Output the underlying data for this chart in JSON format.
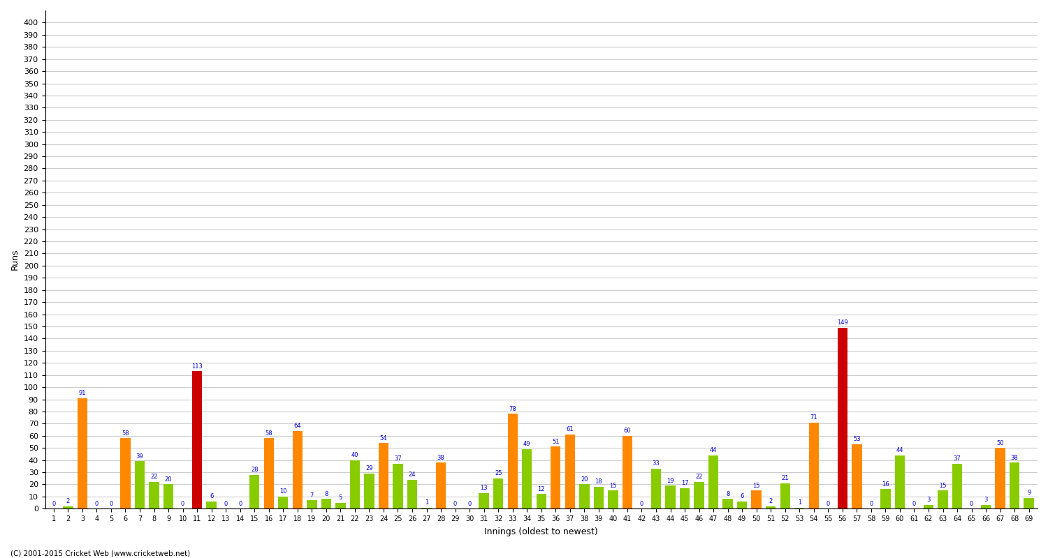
{
  "xlabel": "Innings (oldest to newest)",
  "ylabel": "Runs",
  "background_color": "#ffffff",
  "grid_color": "#cccccc",
  "ylim": [
    0,
    410
  ],
  "orange_color": "#ff8800",
  "green_color": "#88cc00",
  "red_color": "#cc0000",
  "label_color": "#0000cc",
  "footer": "(C) 2001-2015 Cricket Web (www.cricketweb.net)",
  "innings_data": [
    {
      "inn": 1,
      "runs": 0,
      "color": "green"
    },
    {
      "inn": 2,
      "runs": 2,
      "color": "green"
    },
    {
      "inn": 3,
      "runs": 91,
      "color": "orange"
    },
    {
      "inn": 4,
      "runs": 0,
      "color": "orange"
    },
    {
      "inn": 5,
      "runs": 0,
      "color": "green"
    },
    {
      "inn": 6,
      "runs": 58,
      "color": "orange"
    },
    {
      "inn": 7,
      "runs": 39,
      "color": "green"
    },
    {
      "inn": 8,
      "runs": 22,
      "color": "green"
    },
    {
      "inn": 9,
      "runs": 20,
      "color": "green"
    },
    {
      "inn": 10,
      "runs": 0,
      "color": "green"
    },
    {
      "inn": 11,
      "runs": 113,
      "color": "red"
    },
    {
      "inn": 12,
      "runs": 6,
      "color": "green"
    },
    {
      "inn": 13,
      "runs": 0,
      "color": "green"
    },
    {
      "inn": 14,
      "runs": 0,
      "color": "orange"
    },
    {
      "inn": 15,
      "runs": 28,
      "color": "green"
    },
    {
      "inn": 16,
      "runs": 58,
      "color": "orange"
    },
    {
      "inn": 17,
      "runs": 10,
      "color": "green"
    },
    {
      "inn": 18,
      "runs": 64,
      "color": "orange"
    },
    {
      "inn": 19,
      "runs": 7,
      "color": "green"
    },
    {
      "inn": 20,
      "runs": 8,
      "color": "green"
    },
    {
      "inn": 21,
      "runs": 5,
      "color": "green"
    },
    {
      "inn": 22,
      "runs": 40,
      "color": "green"
    },
    {
      "inn": 23,
      "runs": 29,
      "color": "green"
    },
    {
      "inn": 24,
      "runs": 54,
      "color": "orange"
    },
    {
      "inn": 25,
      "runs": 37,
      "color": "green"
    },
    {
      "inn": 26,
      "runs": 24,
      "color": "green"
    },
    {
      "inn": 27,
      "runs": 1,
      "color": "green"
    },
    {
      "inn": 28,
      "runs": 38,
      "color": "orange"
    },
    {
      "inn": 29,
      "runs": 0,
      "color": "green"
    },
    {
      "inn": 30,
      "runs": 0,
      "color": "green"
    },
    {
      "inn": 31,
      "runs": 13,
      "color": "green"
    },
    {
      "inn": 32,
      "runs": 25,
      "color": "green"
    },
    {
      "inn": 33,
      "runs": 78,
      "color": "orange"
    },
    {
      "inn": 34,
      "runs": 49,
      "color": "green"
    },
    {
      "inn": 35,
      "runs": 12,
      "color": "green"
    },
    {
      "inn": 36,
      "runs": 51,
      "color": "orange"
    },
    {
      "inn": 37,
      "runs": 61,
      "color": "orange"
    },
    {
      "inn": 38,
      "runs": 20,
      "color": "green"
    },
    {
      "inn": 39,
      "runs": 18,
      "color": "green"
    },
    {
      "inn": 40,
      "runs": 15,
      "color": "green"
    },
    {
      "inn": 41,
      "runs": 60,
      "color": "orange"
    },
    {
      "inn": 42,
      "runs": 0,
      "color": "green"
    },
    {
      "inn": 43,
      "runs": 33,
      "color": "green"
    },
    {
      "inn": 44,
      "runs": 19,
      "color": "green"
    },
    {
      "inn": 45,
      "runs": 17,
      "color": "green"
    },
    {
      "inn": 46,
      "runs": 22,
      "color": "green"
    },
    {
      "inn": 47,
      "runs": 44,
      "color": "green"
    },
    {
      "inn": 48,
      "runs": 8,
      "color": "green"
    },
    {
      "inn": 49,
      "runs": 6,
      "color": "green"
    },
    {
      "inn": 50,
      "runs": 15,
      "color": "orange"
    },
    {
      "inn": 51,
      "runs": 2,
      "color": "green"
    },
    {
      "inn": 52,
      "runs": 21,
      "color": "green"
    },
    {
      "inn": 53,
      "runs": 1,
      "color": "green"
    },
    {
      "inn": 54,
      "runs": 71,
      "color": "orange"
    },
    {
      "inn": 55,
      "runs": 0,
      "color": "green"
    },
    {
      "inn": 56,
      "runs": 149,
      "color": "red"
    },
    {
      "inn": 57,
      "runs": 53,
      "color": "orange"
    },
    {
      "inn": 58,
      "runs": 0,
      "color": "green"
    },
    {
      "inn": 59,
      "runs": 16,
      "color": "green"
    },
    {
      "inn": 60,
      "runs": 44,
      "color": "green"
    },
    {
      "inn": 61,
      "runs": 0,
      "color": "green"
    },
    {
      "inn": 62,
      "runs": 3,
      "color": "green"
    },
    {
      "inn": 63,
      "runs": 15,
      "color": "green"
    },
    {
      "inn": 64,
      "runs": 37,
      "color": "green"
    },
    {
      "inn": 65,
      "runs": 0,
      "color": "green"
    },
    {
      "inn": 66,
      "runs": 3,
      "color": "green"
    },
    {
      "inn": 67,
      "runs": 50,
      "color": "orange"
    },
    {
      "inn": 68,
      "runs": 38,
      "color": "green"
    },
    {
      "inn": 69,
      "runs": 9,
      "color": "green"
    }
  ]
}
